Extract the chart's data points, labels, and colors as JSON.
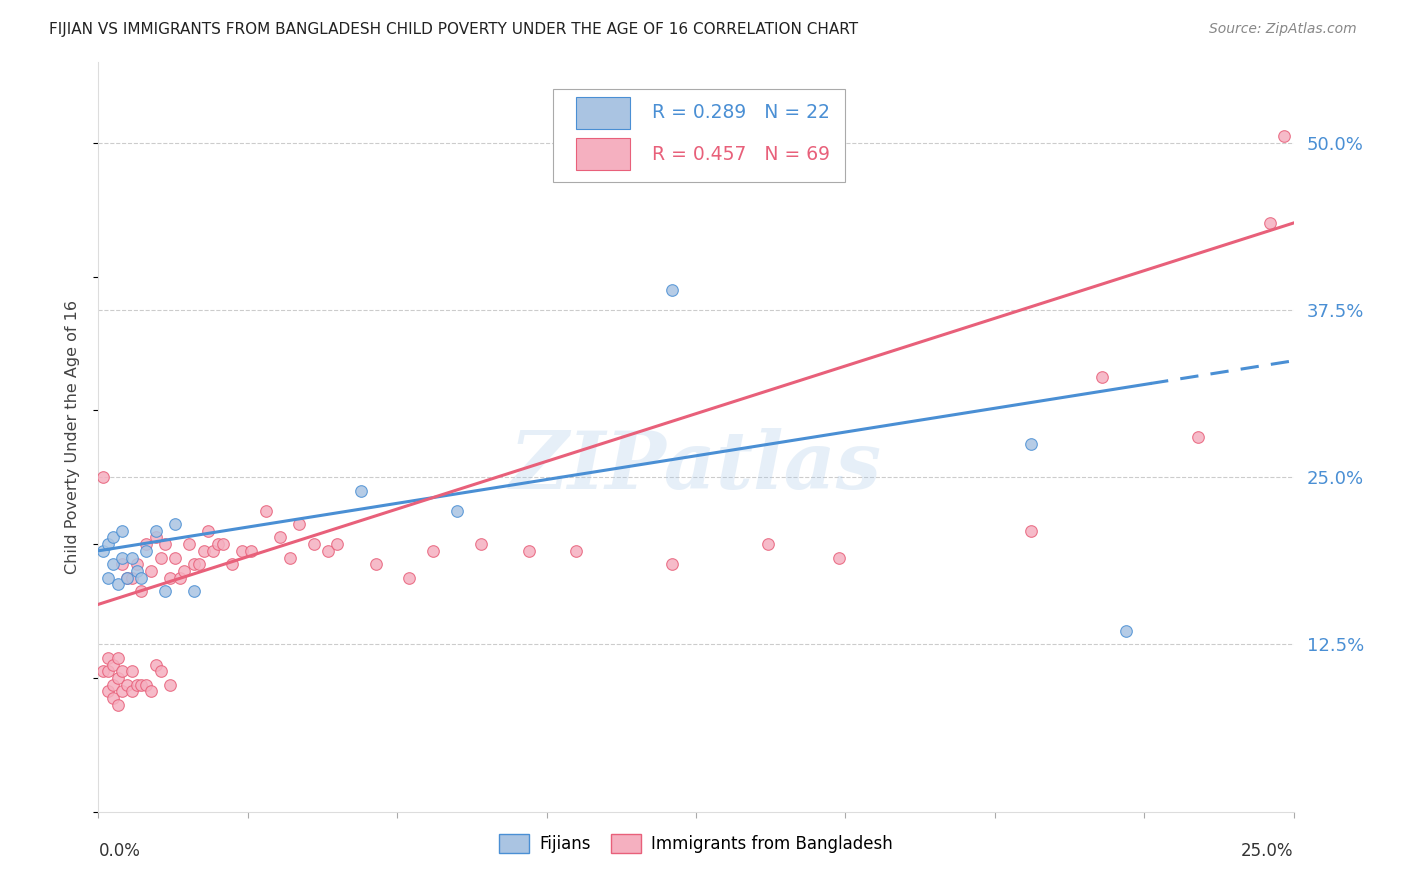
{
  "title": "FIJIAN VS IMMIGRANTS FROM BANGLADESH CHILD POVERTY UNDER THE AGE OF 16 CORRELATION CHART",
  "source": "Source: ZipAtlas.com",
  "ylabel": "Child Poverty Under the Age of 16",
  "ytick_labels": [
    "12.5%",
    "25.0%",
    "37.5%",
    "50.0%"
  ],
  "ytick_values": [
    0.125,
    0.25,
    0.375,
    0.5
  ],
  "xlim": [
    0.0,
    0.25
  ],
  "ylim": [
    0.0,
    0.56
  ],
  "watermark": "ZIPatlas",
  "fijian_color": "#aac4e2",
  "bangladesh_color": "#f5b0c0",
  "line_blue": "#4a8fd4",
  "line_pink": "#e8607a",
  "fijians_x": [
    0.001,
    0.002,
    0.002,
    0.003,
    0.003,
    0.004,
    0.005,
    0.005,
    0.006,
    0.007,
    0.008,
    0.009,
    0.01,
    0.012,
    0.014,
    0.016,
    0.02,
    0.055,
    0.075,
    0.12,
    0.195,
    0.215
  ],
  "fijians_y": [
    0.195,
    0.175,
    0.2,
    0.185,
    0.205,
    0.17,
    0.19,
    0.21,
    0.175,
    0.19,
    0.18,
    0.175,
    0.195,
    0.21,
    0.165,
    0.215,
    0.165,
    0.24,
    0.225,
    0.39,
    0.275,
    0.135
  ],
  "bangladesh_x": [
    0.001,
    0.001,
    0.002,
    0.002,
    0.002,
    0.003,
    0.003,
    0.003,
    0.004,
    0.004,
    0.004,
    0.005,
    0.005,
    0.005,
    0.006,
    0.006,
    0.007,
    0.007,
    0.007,
    0.008,
    0.008,
    0.009,
    0.009,
    0.01,
    0.01,
    0.011,
    0.011,
    0.012,
    0.012,
    0.013,
    0.013,
    0.014,
    0.015,
    0.015,
    0.016,
    0.017,
    0.018,
    0.019,
    0.02,
    0.021,
    0.022,
    0.023,
    0.024,
    0.025,
    0.026,
    0.028,
    0.03,
    0.032,
    0.035,
    0.038,
    0.04,
    0.042,
    0.045,
    0.048,
    0.05,
    0.058,
    0.065,
    0.07,
    0.08,
    0.09,
    0.1,
    0.12,
    0.14,
    0.155,
    0.195,
    0.21,
    0.23,
    0.245,
    0.248
  ],
  "bangladesh_y": [
    0.25,
    0.105,
    0.105,
    0.09,
    0.115,
    0.11,
    0.095,
    0.085,
    0.1,
    0.115,
    0.08,
    0.105,
    0.09,
    0.185,
    0.095,
    0.175,
    0.09,
    0.105,
    0.175,
    0.095,
    0.185,
    0.095,
    0.165,
    0.095,
    0.2,
    0.18,
    0.09,
    0.11,
    0.205,
    0.105,
    0.19,
    0.2,
    0.095,
    0.175,
    0.19,
    0.175,
    0.18,
    0.2,
    0.185,
    0.185,
    0.195,
    0.21,
    0.195,
    0.2,
    0.2,
    0.185,
    0.195,
    0.195,
    0.225,
    0.205,
    0.19,
    0.215,
    0.2,
    0.195,
    0.2,
    0.185,
    0.175,
    0.195,
    0.2,
    0.195,
    0.195,
    0.185,
    0.2,
    0.19,
    0.21,
    0.325,
    0.28,
    0.44,
    0.505
  ]
}
